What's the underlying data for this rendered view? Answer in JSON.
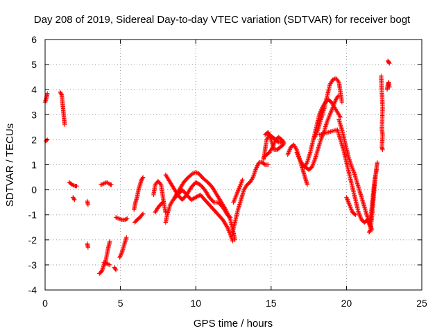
{
  "chart_data": {
    "type": "scatter",
    "title": "Day 208 of 2019, Sidereal Day-to-day VTEC variation (SDTVAR) for receiver bogt",
    "xlabel": "GPS time / hours",
    "ylabel": "SDTVAR / TECUs",
    "xlim": [
      0,
      25
    ],
    "ylim": [
      -4,
      6
    ],
    "xticks": [
      "0",
      "5",
      "10",
      "15",
      "20",
      "25"
    ],
    "yticks": [
      "-4",
      "-3",
      "-2",
      "-1",
      "0",
      "1",
      "2",
      "3",
      "4",
      "5",
      "6"
    ],
    "grid": true,
    "marker": "+",
    "color": "#ff0000",
    "segments": [
      [
        [
          0.0,
          3.5
        ],
        [
          0.1,
          3.7
        ],
        [
          0.15,
          3.85
        ]
      ],
      [
        [
          0.05,
          1.95
        ],
        [
          0.15,
          2.0
        ]
      ],
      [
        [
          1.0,
          3.9
        ],
        [
          1.1,
          3.8
        ],
        [
          1.15,
          3.5
        ],
        [
          1.2,
          3.2
        ],
        [
          1.25,
          2.9
        ],
        [
          1.3,
          2.6
        ]
      ],
      [
        [
          1.6,
          0.3
        ],
        [
          1.8,
          0.2
        ],
        [
          2.0,
          0.15
        ],
        [
          2.1,
          0.15
        ]
      ],
      [
        [
          1.85,
          -0.3
        ],
        [
          1.95,
          -0.4
        ]
      ],
      [
        [
          2.8,
          -0.45
        ],
        [
          2.85,
          -0.6
        ]
      ],
      [
        [
          2.8,
          -2.15
        ],
        [
          2.85,
          -2.3
        ]
      ],
      [
        [
          3.6,
          -3.35
        ],
        [
          3.7,
          -3.3
        ],
        [
          3.8,
          -3.2
        ],
        [
          3.9,
          -3.0
        ],
        [
          4.0,
          -2.9
        ],
        [
          4.1,
          -2.6
        ],
        [
          4.2,
          -2.3
        ],
        [
          4.3,
          -2.05
        ]
      ],
      [
        [
          3.9,
          -2.9
        ],
        [
          4.1,
          -2.95
        ],
        [
          4.3,
          -3.0
        ]
      ],
      [
        [
          3.7,
          0.2
        ],
        [
          3.9,
          0.25
        ],
        [
          4.1,
          0.3
        ],
        [
          4.3,
          0.22
        ],
        [
          4.4,
          0.2
        ]
      ],
      [
        [
          4.6,
          -3.1
        ],
        [
          4.7,
          -3.2
        ]
      ],
      [
        [
          4.7,
          -1.1
        ],
        [
          4.9,
          -1.15
        ],
        [
          5.1,
          -1.2
        ],
        [
          5.3,
          -1.2
        ],
        [
          5.45,
          -1.15
        ]
      ],
      [
        [
          4.95,
          -2.7
        ],
        [
          5.1,
          -2.5
        ],
        [
          5.25,
          -2.2
        ],
        [
          5.4,
          -1.9
        ]
      ],
      [
        [
          5.9,
          -0.8
        ],
        [
          6.0,
          -0.5
        ],
        [
          6.1,
          -0.3
        ],
        [
          6.2,
          0.0
        ],
        [
          6.3,
          0.2
        ],
        [
          6.4,
          0.4
        ],
        [
          6.5,
          0.5
        ]
      ],
      [
        [
          5.95,
          -1.3
        ],
        [
          6.1,
          -1.2
        ],
        [
          6.3,
          -1.1
        ],
        [
          6.5,
          -0.95
        ]
      ],
      [
        [
          7.2,
          -0.2
        ],
        [
          7.3,
          0.2
        ],
        [
          7.5,
          0.35
        ],
        [
          7.7,
          0.2
        ],
        [
          7.8,
          -0.2
        ],
        [
          7.9,
          -0.6
        ],
        [
          8.0,
          -0.9
        ]
      ],
      [
        [
          7.3,
          -0.9
        ],
        [
          7.5,
          -0.7
        ],
        [
          7.8,
          -0.5
        ]
      ],
      [
        [
          8.0,
          -1.3
        ],
        [
          8.1,
          -1.0
        ],
        [
          8.3,
          -0.6
        ],
        [
          8.5,
          -0.4
        ],
        [
          8.8,
          -0.2
        ],
        [
          9.1,
          0.0
        ],
        [
          9.4,
          -0.2
        ],
        [
          9.7,
          -0.4
        ],
        [
          10.0,
          -0.3
        ],
        [
          10.3,
          -0.2
        ],
        [
          10.6,
          -0.4
        ],
        [
          10.9,
          -0.6
        ],
        [
          11.2,
          -0.8
        ],
        [
          11.5,
          -1.0
        ],
        [
          11.8,
          -1.2
        ],
        [
          12.1,
          -1.5
        ],
        [
          12.3,
          -1.8
        ],
        [
          12.45,
          -2.05
        ]
      ],
      [
        [
          8.0,
          0.6
        ],
        [
          8.2,
          0.4
        ],
        [
          8.5,
          0.1
        ],
        [
          8.8,
          -0.2
        ],
        [
          9.1,
          -0.4
        ],
        [
          9.4,
          -0.2
        ],
        [
          9.7,
          0.1
        ],
        [
          10.0,
          0.3
        ],
        [
          10.3,
          0.2
        ],
        [
          10.6,
          0.0
        ],
        [
          10.9,
          -0.3
        ],
        [
          11.2,
          -0.5
        ],
        [
          11.5,
          -0.5
        ],
        [
          11.8,
          -0.7
        ],
        [
          12.1,
          -1.0
        ],
        [
          12.3,
          -1.1
        ]
      ],
      [
        [
          8.6,
          -0.3
        ],
        [
          8.9,
          0.0
        ],
        [
          9.2,
          0.3
        ],
        [
          9.5,
          0.5
        ],
        [
          9.8,
          0.65
        ],
        [
          10.0,
          0.7
        ],
        [
          10.2,
          0.65
        ],
        [
          10.5,
          0.45
        ],
        [
          10.8,
          0.3
        ],
        [
          11.1,
          0.1
        ],
        [
          11.4,
          -0.2
        ],
        [
          11.7,
          -0.5
        ],
        [
          12.0,
          -0.8
        ],
        [
          12.3,
          -1.2
        ],
        [
          12.5,
          -1.7
        ],
        [
          12.6,
          -2.0
        ]
      ],
      [
        [
          12.4,
          -1.8
        ],
        [
          12.6,
          -1.3
        ],
        [
          12.8,
          -0.8
        ],
        [
          13.0,
          -0.4
        ],
        [
          13.2,
          0.0
        ],
        [
          13.4,
          0.2
        ],
        [
          13.6,
          0.3
        ],
        [
          13.8,
          0.5
        ],
        [
          14.0,
          0.85
        ],
        [
          14.2,
          1.1
        ],
        [
          14.4,
          1.1
        ],
        [
          14.6,
          1.0
        ],
        [
          14.8,
          1.0
        ]
      ],
      [
        [
          12.5,
          -0.5
        ],
        [
          12.7,
          -0.2
        ],
        [
          12.9,
          0.1
        ],
        [
          13.1,
          0.4
        ]
      ],
      [
        [
          14.5,
          1.2
        ],
        [
          14.6,
          1.6
        ],
        [
          14.7,
          2.0
        ],
        [
          14.9,
          2.2
        ],
        [
          15.1,
          2.1
        ],
        [
          15.3,
          2.0
        ],
        [
          15.5,
          1.9
        ],
        [
          15.7,
          1.9
        ],
        [
          15.85,
          1.85
        ]
      ],
      [
        [
          14.6,
          2.2
        ],
        [
          14.8,
          2.3
        ],
        [
          15.0,
          2.0
        ],
        [
          15.2,
          1.6
        ],
        [
          15.4,
          1.6
        ],
        [
          15.6,
          1.7
        ],
        [
          15.8,
          1.8
        ]
      ],
      [
        [
          14.5,
          1.3
        ],
        [
          14.7,
          1.4
        ],
        [
          14.9,
          1.5
        ],
        [
          15.1,
          1.7
        ],
        [
          15.3,
          2.0
        ],
        [
          15.5,
          2.1
        ],
        [
          15.7,
          2.0
        ],
        [
          15.85,
          1.9
        ]
      ],
      [
        [
          16.1,
          1.4
        ],
        [
          16.3,
          1.7
        ],
        [
          16.5,
          1.8
        ],
        [
          16.7,
          1.6
        ],
        [
          16.9,
          1.2
        ],
        [
          17.1,
          0.8
        ],
        [
          17.2,
          0.6
        ],
        [
          17.3,
          0.4
        ],
        [
          17.4,
          0.2
        ]
      ],
      [
        [
          16.7,
          1.5
        ],
        [
          16.9,
          1.2
        ],
        [
          17.1,
          1.0
        ],
        [
          17.3,
          0.9
        ],
        [
          17.5,
          0.8
        ],
        [
          17.7,
          0.9
        ],
        [
          17.9,
          1.2
        ],
        [
          18.1,
          1.6
        ],
        [
          18.3,
          2.0
        ],
        [
          18.5,
          2.3
        ],
        [
          18.7,
          2.7
        ],
        [
          18.9,
          3.0
        ],
        [
          19.1,
          3.3
        ],
        [
          19.3,
          3.6
        ],
        [
          19.45,
          3.75
        ]
      ],
      [
        [
          17.2,
          0.9
        ],
        [
          17.4,
          1.1
        ],
        [
          17.6,
          1.5
        ],
        [
          17.8,
          2.0
        ],
        [
          18.0,
          2.5
        ],
        [
          18.2,
          3.0
        ],
        [
          18.4,
          3.3
        ],
        [
          18.6,
          3.5
        ],
        [
          18.8,
          3.6
        ],
        [
          19.0,
          3.5
        ],
        [
          19.2,
          3.3
        ],
        [
          19.4,
          3.1
        ],
        [
          19.6,
          2.9
        ]
      ],
      [
        [
          17.9,
          2.1
        ],
        [
          18.1,
          2.4
        ],
        [
          18.3,
          2.8
        ],
        [
          18.5,
          3.2
        ],
        [
          18.7,
          3.7
        ],
        [
          18.9,
          4.2
        ],
        [
          19.1,
          4.4
        ],
        [
          19.3,
          4.45
        ],
        [
          19.5,
          4.3
        ],
        [
          19.6,
          3.9
        ],
        [
          19.7,
          3.5
        ]
      ],
      [
        [
          18.2,
          2.2
        ],
        [
          18.5,
          2.25
        ],
        [
          18.8,
          2.3
        ],
        [
          19.1,
          2.35
        ],
        [
          19.4,
          2.4
        ],
        [
          19.6,
          2.0
        ],
        [
          19.8,
          1.6
        ],
        [
          20.0,
          1.1
        ],
        [
          20.2,
          0.6
        ],
        [
          20.4,
          0.1
        ],
        [
          20.6,
          -0.4
        ],
        [
          20.8,
          -0.9
        ],
        [
          21.0,
          -1.2
        ],
        [
          21.2,
          -1.3
        ],
        [
          21.4,
          -1.2
        ],
        [
          21.6,
          -1.5
        ]
      ],
      [
        [
          19.5,
          2.8
        ],
        [
          19.7,
          2.4
        ],
        [
          19.9,
          1.9
        ],
        [
          20.1,
          1.4
        ],
        [
          20.3,
          1.0
        ],
        [
          20.5,
          0.7
        ],
        [
          20.7,
          0.3
        ],
        [
          20.9,
          -0.1
        ],
        [
          21.1,
          -0.5
        ],
        [
          21.3,
          -0.9
        ],
        [
          21.5,
          -1.3
        ],
        [
          21.7,
          -1.6
        ]
      ],
      [
        [
          20.0,
          -0.3
        ],
        [
          20.2,
          -0.6
        ],
        [
          20.4,
          -0.9
        ],
        [
          20.6,
          -1.0
        ]
      ],
      [
        [
          21.5,
          -1.7
        ],
        [
          21.6,
          -1.6
        ],
        [
          21.7,
          -1.0
        ],
        [
          21.8,
          -0.3
        ],
        [
          21.9,
          0.4
        ],
        [
          22.0,
          0.9
        ],
        [
          22.05,
          1.1
        ]
      ],
      [
        [
          21.6,
          -1.2
        ],
        [
          21.7,
          -0.6
        ],
        [
          21.8,
          0.0
        ],
        [
          21.9,
          0.5
        ],
        [
          22.0,
          0.8
        ]
      ],
      [
        [
          22.3,
          4.55
        ],
        [
          22.35,
          3.9
        ],
        [
          22.4,
          3.3
        ],
        [
          22.35,
          2.4
        ],
        [
          22.4,
          2.2
        ],
        [
          22.35,
          1.7
        ],
        [
          22.4,
          1.6
        ]
      ],
      [
        [
          22.7,
          4.0
        ],
        [
          22.75,
          4.2
        ],
        [
          22.8,
          4.3
        ],
        [
          22.85,
          4.1
        ]
      ],
      [
        [
          22.75,
          5.15
        ],
        [
          22.8,
          5.1
        ],
        [
          22.85,
          5.05
        ]
      ]
    ]
  }
}
